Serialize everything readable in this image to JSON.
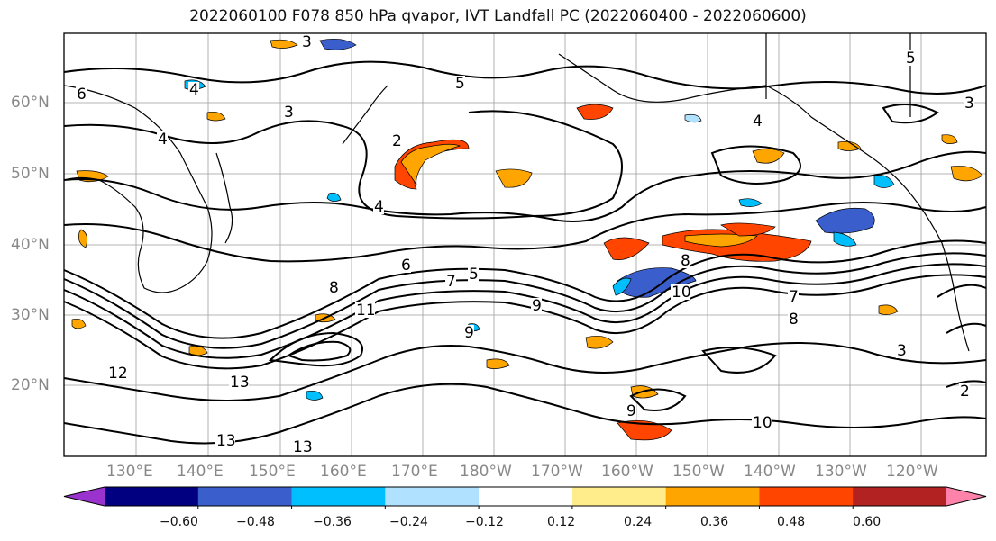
{
  "title": "2022060100 F078 850 hPa qvapor, IVT Landfall PC (2022060400 - 2022060600)",
  "lat_labels": [
    "60°N",
    "50°N",
    "40°N",
    "30°N",
    "20°N"
  ],
  "lon_labels": [
    "130°E",
    "140°E",
    "150°E",
    "160°E",
    "170°E",
    "180°W",
    "170°W",
    "160°W",
    "150°W",
    "140°W",
    "130°W",
    "120°W"
  ],
  "colorbar": {
    "ticks": [
      "−0.60",
      "−0.48",
      "−0.36",
      "−0.24",
      "−0.12",
      "0.12",
      "0.24",
      "0.36",
      "0.48",
      "0.60"
    ],
    "colors": [
      "#9a32cd",
      "#000080",
      "#3a5fcd",
      "#00bfff",
      "#b0e2ff",
      "#ffffff",
      "#ffec8b",
      "#ffa500",
      "#ff4500",
      "#b22222",
      "#ff82ab"
    ]
  },
  "contour_labels": [
    "3",
    "4",
    "5",
    "6",
    "2",
    "4",
    "3",
    "4",
    "3",
    "5",
    "6",
    "7",
    "8",
    "9",
    "10",
    "11",
    "12",
    "13",
    "13",
    "13",
    "10",
    "9",
    "8",
    "7",
    "3",
    "2",
    "9",
    "8",
    "4",
    "5"
  ]
}
